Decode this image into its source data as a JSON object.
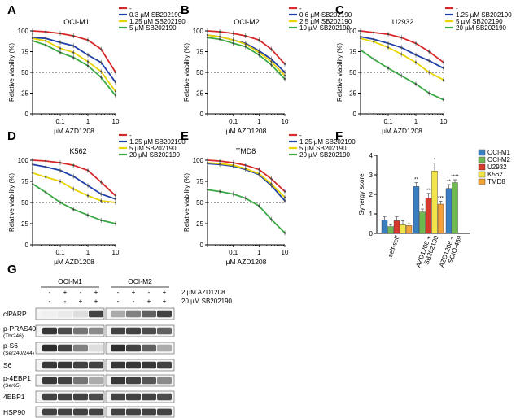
{
  "colors": {
    "red": "#d62728",
    "blue": "#1f3fa8",
    "yellow": "#e8d400",
    "green": "#3aa845",
    "lightgreen": "#6dbb57",
    "barBlue": "#3a7ec2",
    "barGreen": "#70b950",
    "barRed": "#d6392b",
    "barYellow": "#f2e34a",
    "barOrange": "#f3a13a",
    "blot": "#222222"
  },
  "chart_data": [
    {
      "type": "line",
      "panel_label": "A",
      "title": "OCI-M1",
      "xlabel": "µM AZD1208",
      "ylabel": "Relative viability (%)",
      "xscale": "log",
      "xlim": [
        0.01,
        10
      ],
      "ylim": [
        0,
        100
      ],
      "x_ticks": [
        "0.1",
        "1",
        "10"
      ],
      "y_ticks": [
        "0",
        "25",
        "50",
        "75",
        "100"
      ],
      "reference_line": 50,
      "x": [
        0.01,
        0.03,
        0.1,
        0.3,
        1,
        3,
        10
      ],
      "series": [
        {
          "name": "-",
          "color": "red",
          "values": [
            100,
            99,
            97,
            94,
            89,
            78,
            50
          ]
        },
        {
          "name": "0.3 µM SB202190",
          "color": "blue",
          "values": [
            92,
            91,
            86,
            82,
            71,
            62,
            38
          ]
        },
        {
          "name": "1.25 µM SB202190",
          "color": "yellow",
          "values": [
            91,
            88,
            79,
            74,
            63,
            51,
            27
          ]
        },
        {
          "name": "5 µM SB202190",
          "color": "green",
          "values": [
            88,
            83,
            74,
            68,
            58,
            44,
            22
          ]
        }
      ]
    },
    {
      "type": "line",
      "panel_label": "B",
      "title": "OCI-M2",
      "xlabel": "µM AZD1208",
      "ylabel": "Relative viability (%)",
      "xscale": "log",
      "xlim": [
        0.01,
        10
      ],
      "ylim": [
        0,
        100
      ],
      "x_ticks": [
        "0.1",
        "1",
        "10"
      ],
      "y_ticks": [
        "0",
        "25",
        "50",
        "75",
        "100"
      ],
      "reference_line": 50,
      "x": [
        0.01,
        0.03,
        0.1,
        0.3,
        1,
        3,
        10
      ],
      "series": [
        {
          "name": "-",
          "color": "red",
          "values": [
            100,
            99,
            97,
            94,
            89,
            78,
            60
          ]
        },
        {
          "name": "0.6 µM SB202190",
          "color": "blue",
          "values": [
            95,
            93,
            89,
            85,
            76,
            66,
            50
          ]
        },
        {
          "name": "2.5 µM SB202190",
          "color": "yellow",
          "values": [
            95,
            93,
            89,
            84,
            74,
            63,
            46
          ]
        },
        {
          "name": "10 µM SB202190",
          "color": "green",
          "values": [
            92,
            90,
            85,
            81,
            71,
            59,
            42
          ]
        }
      ]
    },
    {
      "type": "line",
      "panel_label": "C",
      "title": "U2932",
      "xlabel": "µM AZD1208",
      "ylabel": "Relative viability (%)",
      "xscale": "log",
      "xlim": [
        0.01,
        10
      ],
      "ylim": [
        0,
        100
      ],
      "x_ticks": [
        "0.1",
        "1",
        "10"
      ],
      "y_ticks": [
        "0",
        "25",
        "50",
        "75",
        "100"
      ],
      "reference_line": 50,
      "x": [
        0.01,
        0.03,
        0.1,
        0.3,
        1,
        3,
        10
      ],
      "series": [
        {
          "name": "-",
          "color": "red",
          "values": [
            100,
            98,
            96,
            92,
            85,
            75,
            62
          ]
        },
        {
          "name": "1.25 µM SB202190",
          "color": "blue",
          "values": [
            93,
            90,
            85,
            80,
            71,
            64,
            55
          ]
        },
        {
          "name": "5 µM SB202190",
          "color": "yellow",
          "values": [
            91,
            87,
            80,
            72,
            62,
            50,
            41
          ]
        },
        {
          "name": "20 µM SB202190",
          "color": "green",
          "values": [
            77,
            66,
            55,
            46,
            36,
            25,
            17
          ]
        }
      ]
    },
    {
      "type": "line",
      "panel_label": "D",
      "title": "K562",
      "xlabel": "µM AZD1208",
      "ylabel": "Relative viability (%)",
      "xscale": "log",
      "xlim": [
        0.01,
        10
      ],
      "ylim": [
        0,
        100
      ],
      "x_ticks": [
        "0.1",
        "1",
        "10"
      ],
      "y_ticks": [
        "0",
        "25",
        "50",
        "75",
        "100"
      ],
      "reference_line": 50,
      "x": [
        0.01,
        0.03,
        0.1,
        0.3,
        1,
        3,
        10
      ],
      "series": [
        {
          "name": "-",
          "color": "red",
          "values": [
            100,
            99,
            97,
            94,
            88,
            74,
            58
          ]
        },
        {
          "name": "1.25 µM SB202190",
          "color": "blue",
          "values": [
            95,
            92,
            88,
            81,
            70,
            60,
            54
          ]
        },
        {
          "name": "5 µM SB202190",
          "color": "yellow",
          "values": [
            85,
            80,
            75,
            66,
            58,
            52,
            50
          ]
        },
        {
          "name": "20 µM SB202190",
          "color": "green",
          "values": [
            72,
            62,
            50,
            42,
            35,
            29,
            25
          ]
        }
      ]
    },
    {
      "type": "line",
      "panel_label": "E",
      "title": "TMD8",
      "xlabel": "µM AZD1208",
      "ylabel": "Relative viability (%)",
      "xscale": "log",
      "xlim": [
        0.01,
        10
      ],
      "ylim": [
        0,
        100
      ],
      "x_ticks": [
        "0.1",
        "1",
        "10"
      ],
      "y_ticks": [
        "0",
        "25",
        "50",
        "75",
        "100"
      ],
      "reference_line": 50,
      "x": [
        0.01,
        0.03,
        0.1,
        0.3,
        1,
        3,
        10
      ],
      "series": [
        {
          "name": "-",
          "color": "red",
          "values": [
            100,
            99,
            97,
            94,
            89,
            78,
            63
          ]
        },
        {
          "name": "1.25 µM SB202190",
          "color": "blue",
          "values": [
            96,
            95,
            93,
            89,
            83,
            70,
            52
          ]
        },
        {
          "name": "5 µM SB202190",
          "color": "yellow",
          "values": [
            97,
            96,
            94,
            90,
            84,
            72,
            56
          ]
        },
        {
          "name": "20 µM SB202190",
          "color": "green",
          "values": [
            65,
            63,
            60,
            55,
            46,
            30,
            14
          ]
        }
      ]
    },
    {
      "type": "bar",
      "panel_label": "F",
      "ylabel": "Synergy score",
      "ylim": [
        0,
        4
      ],
      "y_ticks": [
        "0",
        "1",
        "2",
        "3",
        "4"
      ],
      "groups": [
        "self-self",
        "AZD1208 + SB202190",
        "AZD1208 + SCIO-469"
      ],
      "group_labels": [
        [
          "self-self"
        ],
        [
          "AZD1208 +",
          "SB202190"
        ],
        [
          "AZD1208 +",
          "SCIO-469"
        ]
      ],
      "legend": [
        "OCI-M1",
        "OCI-M2",
        "U2932",
        "K562",
        "TMD8"
      ],
      "series": [
        {
          "name": "OCI-M1",
          "color": "barBlue",
          "values": [
            0.7,
            2.4,
            2.3
          ],
          "errors": [
            0.15,
            0.2,
            0.2
          ],
          "stars": [
            "",
            "**",
            "**"
          ]
        },
        {
          "name": "OCI-M2",
          "color": "barGreen",
          "values": [
            0.35,
            1.1,
            2.6
          ],
          "errors": [
            0.1,
            0.15,
            0.15
          ],
          "stars": [
            "",
            "*",
            "****"
          ]
        },
        {
          "name": "U2932",
          "color": "barRed",
          "values": [
            0.65,
            1.8,
            null
          ],
          "errors": [
            0.2,
            0.25,
            null
          ],
          "stars": [
            "",
            "**",
            ""
          ]
        },
        {
          "name": "K562",
          "color": "barYellow",
          "values": [
            0.45,
            3.2,
            null
          ],
          "errors": [
            0.2,
            0.4,
            null
          ],
          "stars": [
            "",
            "*",
            ""
          ]
        },
        {
          "name": "TMD8",
          "color": "barOrange",
          "values": [
            0.4,
            1.5,
            null
          ],
          "errors": [
            0.1,
            0.15,
            null
          ],
          "stars": [
            "",
            "***",
            ""
          ]
        }
      ]
    }
  ],
  "panel_g": {
    "label": "G",
    "cell_lines": [
      "OCI-M1",
      "OCI-M2"
    ],
    "treatments": [
      {
        "label": "2 µM AZD1208",
        "values": [
          "-",
          "+",
          "-",
          "+",
          "-",
          "+",
          "-",
          "+"
        ]
      },
      {
        "label": "20 µM SB202190",
        "values": [
          "-",
          "-",
          "+",
          "+",
          "-",
          "-",
          "+",
          "+"
        ]
      }
    ],
    "blots": [
      {
        "name": "clPARP",
        "sub": "",
        "intensity": [
          [
            0.02,
            0.05,
            0.1,
            0.85
          ],
          [
            0.35,
            0.55,
            0.7,
            0.85
          ]
        ]
      },
      {
        "name": "p-PRAS40",
        "sub": "(Thr246)",
        "intensity": [
          [
            0.9,
            0.8,
            0.6,
            0.5
          ],
          [
            0.85,
            0.85,
            0.8,
            0.7
          ]
        ]
      },
      {
        "name": "p-S6",
        "sub": "(Ser240/244)",
        "intensity": [
          [
            0.95,
            0.85,
            0.55,
            0.1
          ],
          [
            0.95,
            0.85,
            0.7,
            0.35
          ]
        ]
      },
      {
        "name": "S6",
        "sub": "",
        "intensity": [
          [
            0.9,
            0.9,
            0.85,
            0.85
          ],
          [
            0.9,
            0.9,
            0.9,
            0.85
          ]
        ]
      },
      {
        "name": "p-4EBP1",
        "sub": "(Ser65)",
        "intensity": [
          [
            0.9,
            0.85,
            0.6,
            0.35
          ],
          [
            0.9,
            0.85,
            0.75,
            0.5
          ]
        ]
      },
      {
        "name": "4EBP1",
        "sub": "",
        "intensity": [
          [
            0.85,
            0.85,
            0.85,
            0.8
          ],
          [
            0.85,
            0.85,
            0.85,
            0.8
          ]
        ]
      },
      {
        "name": "HSP90",
        "sub": "",
        "intensity": [
          [
            0.85,
            0.85,
            0.85,
            0.85
          ],
          [
            0.85,
            0.85,
            0.85,
            0.85
          ]
        ]
      }
    ]
  }
}
